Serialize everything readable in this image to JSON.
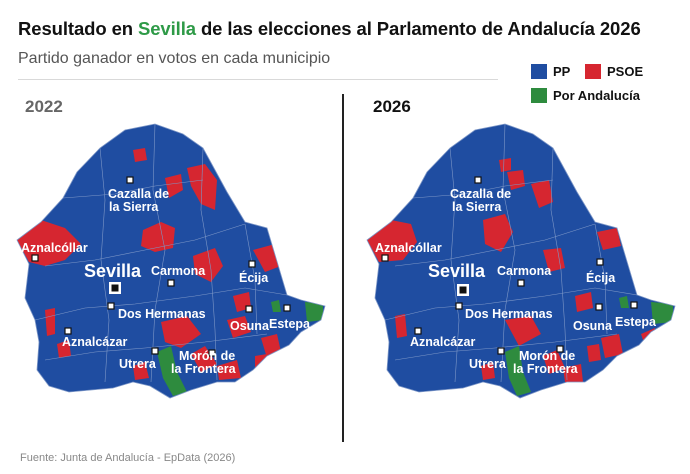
{
  "header": {
    "title_pre": "Resultado en ",
    "title_hl": "Sevilla",
    "title_post": " de las elecciones al Parlamento de Andalucía 2026",
    "subtitle": "Partido ganador en votos en cada municipio"
  },
  "colors": {
    "pp": "#1f4da1",
    "psoe": "#d62630",
    "por_andalucia": "#2e8b3e",
    "highlight": "#2e9a47",
    "border": "#7d97c7"
  },
  "legend": [
    {
      "label": "PP",
      "color": "#1f4da1"
    },
    {
      "label": "PSOE",
      "color": "#d62630"
    },
    {
      "label": "Por Andalucía",
      "color": "#2e8b3e"
    }
  ],
  "maps": [
    {
      "year": "2022"
    },
    {
      "year": "2026"
    }
  ],
  "cities": {
    "cazalla": [
      "Cazalla de",
      "la Sierra"
    ],
    "aznalcollar": "Aznalcóllar",
    "sevilla": "Sevilla",
    "carmona": "Carmona",
    "ecija": "Écija",
    "dos_hermanas": "Dos Hermanas",
    "osuna": "Osuna",
    "estepa": "Estepa",
    "aznalcazar": "Aznalcázar",
    "moron": [
      "Morón de",
      "la Frontera"
    ],
    "utrera": "Utrera"
  },
  "source": "Fuente: Junta de Andalucía - EpData (2026)"
}
